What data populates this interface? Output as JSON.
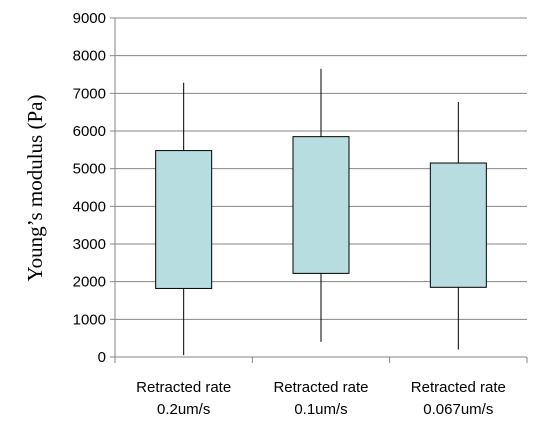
{
  "chart_data": {
    "type": "box",
    "ylabel": "Young’s modulus (Pa)",
    "xlabel": "",
    "ylim": [
      0,
      9000
    ],
    "yticks": [
      0,
      1000,
      2000,
      3000,
      4000,
      5000,
      6000,
      7000,
      8000,
      9000
    ],
    "grid": true,
    "colors": {
      "box_fill": "#B7DDE0",
      "box_stroke": "#000000",
      "grid": "#868686"
    },
    "categories": [
      {
        "line1": "Retracted rate",
        "line2": "0.2um/s"
      },
      {
        "line1": "Retracted rate",
        "line2": "0.1um/s"
      },
      {
        "line1": "Retracted rate",
        "line2": "0.067um/s"
      }
    ],
    "boxes": [
      {
        "min": 50,
        "q1": 1820,
        "q3": 5480,
        "max": 7280
      },
      {
        "min": 400,
        "q1": 2220,
        "q3": 5850,
        "max": 7650
      },
      {
        "min": 200,
        "q1": 1850,
        "q3": 5150,
        "max": 6770
      }
    ]
  }
}
